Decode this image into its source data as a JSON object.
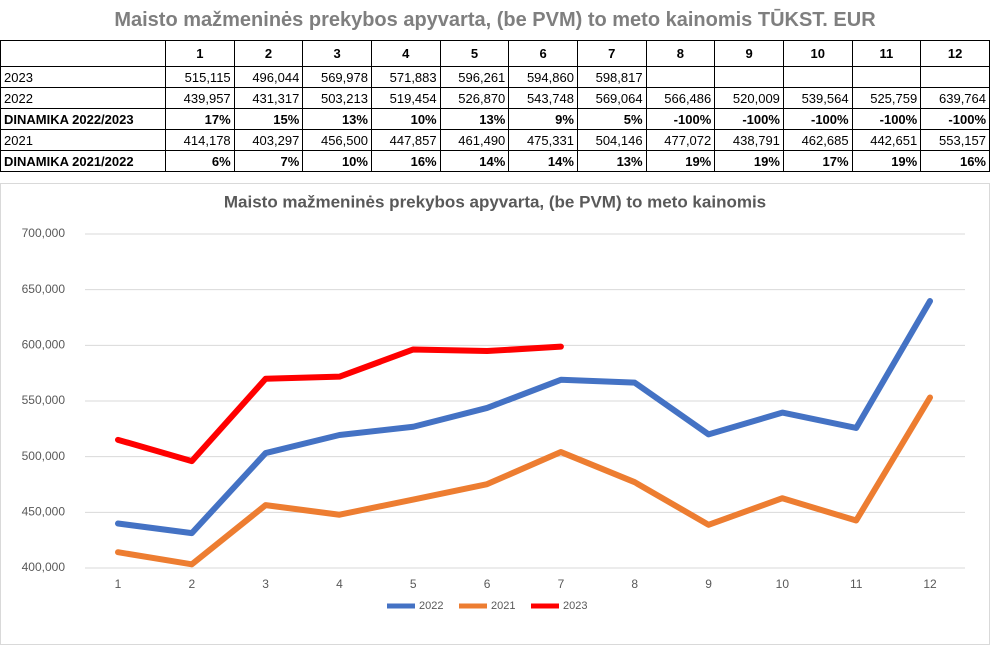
{
  "table": {
    "title": "Maisto mažmeninės prekybos apyvarta, (be PVM) to meto kainomis TŪKST. EUR",
    "header": [
      "1",
      "2",
      "3",
      "4",
      "5",
      "6",
      "7",
      "8",
      "9",
      "10",
      "11",
      "12"
    ],
    "rows": [
      [
        "2023",
        "515,115",
        "496,044",
        "569,978",
        "571,883",
        "596,261",
        "594,860",
        "598,817"
      ],
      [
        "2022",
        "439,957",
        "431,317",
        "503,213",
        "519,454",
        "526,870",
        "543,748",
        "569,064",
        "566,486",
        "520,009",
        "539,564",
        "525,759",
        "639,764"
      ],
      [
        "DINAMIKA 2022/2023",
        "17%",
        "15%",
        "13%",
        "10%",
        "13%",
        "9%",
        "5%",
        "-100%",
        "-100%",
        "-100%",
        "-100%",
        "-100%"
      ],
      [
        "2021",
        "414,178",
        "403,297",
        "456,500",
        "447,857",
        "461,490",
        "475,331",
        "504,146",
        "477,072",
        "438,791",
        "462,685",
        "442,651",
        "553,157"
      ],
      [
        "DINAMIKA 2021/2022",
        "6%",
        "7%",
        "10%",
        "16%",
        "14%",
        "14%",
        "13%",
        "19%",
        "19%",
        "17%",
        "19%",
        "16%"
      ]
    ]
  },
  "chart_data": {
    "type": "line",
    "title": "Maisto mažmeninės prekybos apyvarta, (be PVM) to meto kainomis",
    "categories": [
      "1",
      "2",
      "3",
      "4",
      "5",
      "6",
      "7",
      "8",
      "9",
      "10",
      "11",
      "12"
    ],
    "series": [
      {
        "name": "2022",
        "color": "#4472c4",
        "values": [
          439957,
          431317,
          503213,
          519454,
          526870,
          543748,
          569064,
          566486,
          520009,
          539564,
          525759,
          639764
        ]
      },
      {
        "name": "2021",
        "color": "#ed7d31",
        "values": [
          414178,
          403297,
          456500,
          447857,
          461490,
          475331,
          504146,
          477072,
          438791,
          462685,
          442651,
          553157
        ]
      },
      {
        "name": "2023",
        "color": "#ff0000",
        "values": [
          515115,
          496044,
          569978,
          571883,
          596261,
          594860,
          598817,
          null,
          null,
          null,
          null,
          null
        ]
      }
    ],
    "ylim": [
      400000,
      700000
    ],
    "yticks": [
      {
        "value": 400000,
        "label": "400,000"
      },
      {
        "value": 450000,
        "label": "450,000"
      },
      {
        "value": 500000,
        "label": "500,000"
      },
      {
        "value": 550000,
        "label": "550,000"
      },
      {
        "value": 600000,
        "label": "600,000"
      },
      {
        "value": 650000,
        "label": "650,000"
      },
      {
        "value": 700000,
        "label": "700,000"
      }
    ],
    "grid": true,
    "legend": "bottom"
  }
}
